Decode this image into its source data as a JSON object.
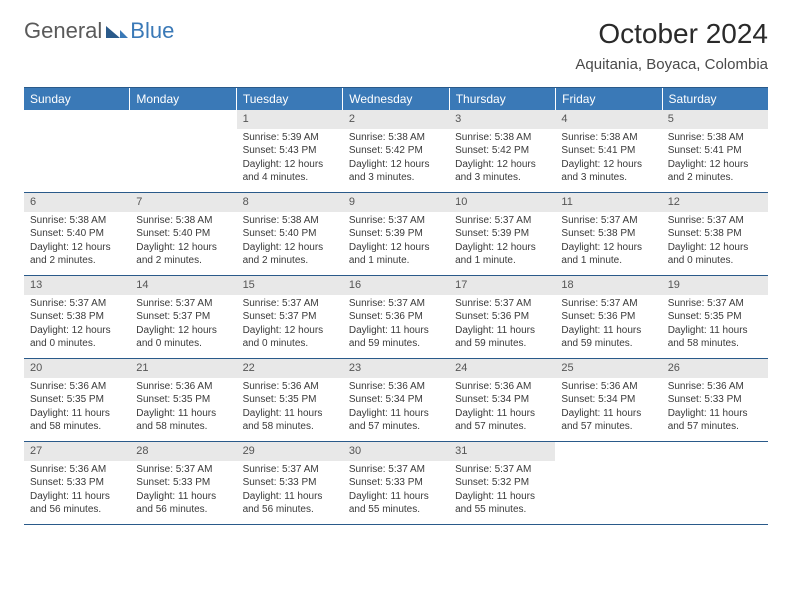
{
  "logo": {
    "text1": "General",
    "text2": "Blue"
  },
  "title": "October 2024",
  "location": "Aquitania, Boyaca, Colombia",
  "colors": {
    "header_bg": "#3a79b7",
    "header_text": "#ffffff",
    "border": "#2a5a8a",
    "daynum_bg": "#e8e8e8",
    "daynum_text": "#555555",
    "body_text": "#3a3a3a",
    "logo_gray": "#5a5a5a",
    "logo_blue": "#3a79b7"
  },
  "dayHeaders": [
    "Sunday",
    "Monday",
    "Tuesday",
    "Wednesday",
    "Thursday",
    "Friday",
    "Saturday"
  ],
  "weeks": [
    [
      {
        "n": "",
        "l": [
          "",
          "",
          "",
          ""
        ]
      },
      {
        "n": "",
        "l": [
          "",
          "",
          "",
          ""
        ]
      },
      {
        "n": "1",
        "l": [
          "Sunrise: 5:39 AM",
          "Sunset: 5:43 PM",
          "Daylight: 12 hours",
          "and 4 minutes."
        ]
      },
      {
        "n": "2",
        "l": [
          "Sunrise: 5:38 AM",
          "Sunset: 5:42 PM",
          "Daylight: 12 hours",
          "and 3 minutes."
        ]
      },
      {
        "n": "3",
        "l": [
          "Sunrise: 5:38 AM",
          "Sunset: 5:42 PM",
          "Daylight: 12 hours",
          "and 3 minutes."
        ]
      },
      {
        "n": "4",
        "l": [
          "Sunrise: 5:38 AM",
          "Sunset: 5:41 PM",
          "Daylight: 12 hours",
          "and 3 minutes."
        ]
      },
      {
        "n": "5",
        "l": [
          "Sunrise: 5:38 AM",
          "Sunset: 5:41 PM",
          "Daylight: 12 hours",
          "and 2 minutes."
        ]
      }
    ],
    [
      {
        "n": "6",
        "l": [
          "Sunrise: 5:38 AM",
          "Sunset: 5:40 PM",
          "Daylight: 12 hours",
          "and 2 minutes."
        ]
      },
      {
        "n": "7",
        "l": [
          "Sunrise: 5:38 AM",
          "Sunset: 5:40 PM",
          "Daylight: 12 hours",
          "and 2 minutes."
        ]
      },
      {
        "n": "8",
        "l": [
          "Sunrise: 5:38 AM",
          "Sunset: 5:40 PM",
          "Daylight: 12 hours",
          "and 2 minutes."
        ]
      },
      {
        "n": "9",
        "l": [
          "Sunrise: 5:37 AM",
          "Sunset: 5:39 PM",
          "Daylight: 12 hours",
          "and 1 minute."
        ]
      },
      {
        "n": "10",
        "l": [
          "Sunrise: 5:37 AM",
          "Sunset: 5:39 PM",
          "Daylight: 12 hours",
          "and 1 minute."
        ]
      },
      {
        "n": "11",
        "l": [
          "Sunrise: 5:37 AM",
          "Sunset: 5:38 PM",
          "Daylight: 12 hours",
          "and 1 minute."
        ]
      },
      {
        "n": "12",
        "l": [
          "Sunrise: 5:37 AM",
          "Sunset: 5:38 PM",
          "Daylight: 12 hours",
          "and 0 minutes."
        ]
      }
    ],
    [
      {
        "n": "13",
        "l": [
          "Sunrise: 5:37 AM",
          "Sunset: 5:38 PM",
          "Daylight: 12 hours",
          "and 0 minutes."
        ]
      },
      {
        "n": "14",
        "l": [
          "Sunrise: 5:37 AM",
          "Sunset: 5:37 PM",
          "Daylight: 12 hours",
          "and 0 minutes."
        ]
      },
      {
        "n": "15",
        "l": [
          "Sunrise: 5:37 AM",
          "Sunset: 5:37 PM",
          "Daylight: 12 hours",
          "and 0 minutes."
        ]
      },
      {
        "n": "16",
        "l": [
          "Sunrise: 5:37 AM",
          "Sunset: 5:36 PM",
          "Daylight: 11 hours",
          "and 59 minutes."
        ]
      },
      {
        "n": "17",
        "l": [
          "Sunrise: 5:37 AM",
          "Sunset: 5:36 PM",
          "Daylight: 11 hours",
          "and 59 minutes."
        ]
      },
      {
        "n": "18",
        "l": [
          "Sunrise: 5:37 AM",
          "Sunset: 5:36 PM",
          "Daylight: 11 hours",
          "and 59 minutes."
        ]
      },
      {
        "n": "19",
        "l": [
          "Sunrise: 5:37 AM",
          "Sunset: 5:35 PM",
          "Daylight: 11 hours",
          "and 58 minutes."
        ]
      }
    ],
    [
      {
        "n": "20",
        "l": [
          "Sunrise: 5:36 AM",
          "Sunset: 5:35 PM",
          "Daylight: 11 hours",
          "and 58 minutes."
        ]
      },
      {
        "n": "21",
        "l": [
          "Sunrise: 5:36 AM",
          "Sunset: 5:35 PM",
          "Daylight: 11 hours",
          "and 58 minutes."
        ]
      },
      {
        "n": "22",
        "l": [
          "Sunrise: 5:36 AM",
          "Sunset: 5:35 PM",
          "Daylight: 11 hours",
          "and 58 minutes."
        ]
      },
      {
        "n": "23",
        "l": [
          "Sunrise: 5:36 AM",
          "Sunset: 5:34 PM",
          "Daylight: 11 hours",
          "and 57 minutes."
        ]
      },
      {
        "n": "24",
        "l": [
          "Sunrise: 5:36 AM",
          "Sunset: 5:34 PM",
          "Daylight: 11 hours",
          "and 57 minutes."
        ]
      },
      {
        "n": "25",
        "l": [
          "Sunrise: 5:36 AM",
          "Sunset: 5:34 PM",
          "Daylight: 11 hours",
          "and 57 minutes."
        ]
      },
      {
        "n": "26",
        "l": [
          "Sunrise: 5:36 AM",
          "Sunset: 5:33 PM",
          "Daylight: 11 hours",
          "and 57 minutes."
        ]
      }
    ],
    [
      {
        "n": "27",
        "l": [
          "Sunrise: 5:36 AM",
          "Sunset: 5:33 PM",
          "Daylight: 11 hours",
          "and 56 minutes."
        ]
      },
      {
        "n": "28",
        "l": [
          "Sunrise: 5:37 AM",
          "Sunset: 5:33 PM",
          "Daylight: 11 hours",
          "and 56 minutes."
        ]
      },
      {
        "n": "29",
        "l": [
          "Sunrise: 5:37 AM",
          "Sunset: 5:33 PM",
          "Daylight: 11 hours",
          "and 56 minutes."
        ]
      },
      {
        "n": "30",
        "l": [
          "Sunrise: 5:37 AM",
          "Sunset: 5:33 PM",
          "Daylight: 11 hours",
          "and 55 minutes."
        ]
      },
      {
        "n": "31",
        "l": [
          "Sunrise: 5:37 AM",
          "Sunset: 5:32 PM",
          "Daylight: 11 hours",
          "and 55 minutes."
        ]
      },
      {
        "n": "",
        "l": [
          "",
          "",
          "",
          ""
        ]
      },
      {
        "n": "",
        "l": [
          "",
          "",
          "",
          ""
        ]
      }
    ]
  ]
}
